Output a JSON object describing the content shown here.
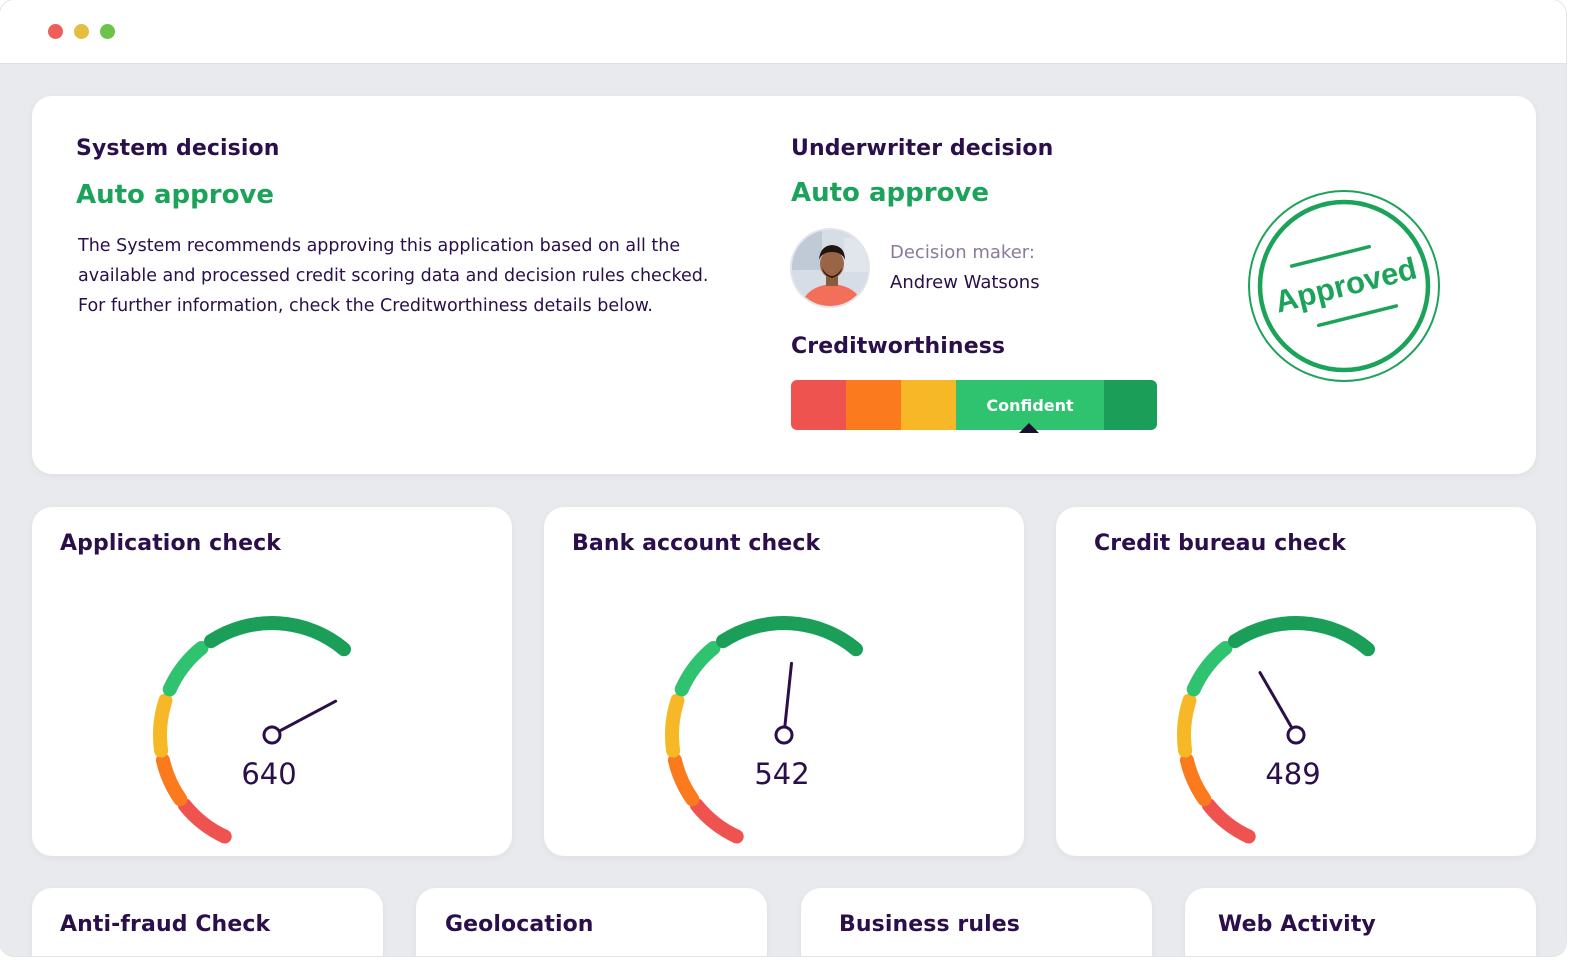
{
  "system": {
    "title": "System decision",
    "decision": "Auto approve",
    "description_lines": [
      "The System recommends approving this application based on all the",
      "available and processed credit scoring data and decision rules checked.",
      "For further information, check the Creditworthiness details below."
    ]
  },
  "underwriter": {
    "title": "Underwriter decision",
    "decision": "Auto approve",
    "decision_maker_label": "Decision maker:",
    "decision_maker_name": "Andrew Watsons"
  },
  "creditworthiness": {
    "title": "Creditworthiness",
    "level_label": "Confident",
    "segment_colors": [
      "#ef5350",
      "#fb7a1e",
      "#f6b826",
      "#2fc36f",
      "#1b9e58"
    ]
  },
  "stamp": {
    "text": "Approved",
    "color": "#1ca35a"
  },
  "checks": [
    {
      "title": "Application check",
      "value": "640"
    },
    {
      "title": "Bank account check",
      "value": "542"
    },
    {
      "title": "Credit bureau check",
      "value": "489"
    }
  ],
  "gauge_colors": [
    "#ef5350",
    "#fb7a1e",
    "#f6b826",
    "#2fc36f",
    "#1b9e58"
  ],
  "sections": [
    {
      "title": "Anti-fraud Check"
    },
    {
      "title": "Geolocation"
    },
    {
      "title": "Business rules"
    },
    {
      "title": "Web Activity"
    }
  ],
  "icons": {
    "window_controls": [
      "close-dot",
      "minimize-dot",
      "maximize-dot"
    ],
    "avatar": "user-photo"
  }
}
